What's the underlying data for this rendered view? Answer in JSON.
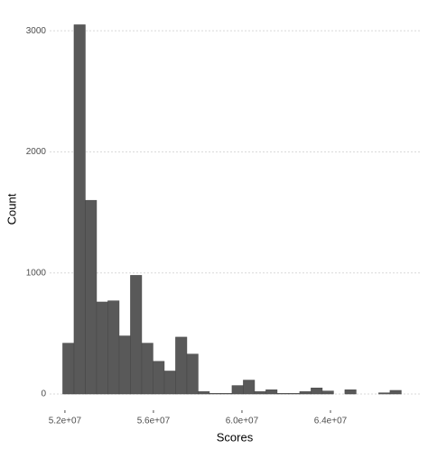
{
  "chart_data": {
    "type": "histogram",
    "xlabel": "Scores",
    "ylabel": "Count",
    "bins": [
      51900000,
      52410000,
      52920000,
      53430000,
      53940000,
      54450000,
      54960000,
      55470000,
      55980000,
      56490000,
      57000000,
      57510000,
      58020000,
      58530000,
      59040000,
      59550000,
      60060000,
      60570000,
      61080000,
      61590000,
      62100000,
      62610000,
      63120000,
      63630000,
      64140000,
      64650000,
      65160000,
      65670000,
      66180000,
      66690000,
      67200000
    ],
    "values": [
      420,
      3050,
      1600,
      760,
      770,
      480,
      980,
      420,
      270,
      190,
      470,
      330,
      20,
      5,
      5,
      70,
      115,
      20,
      35,
      5,
      5,
      20,
      50,
      25,
      0,
      35,
      0,
      0,
      10,
      30
    ],
    "color": "#595959",
    "xlim": [
      51310000,
      68040000
    ],
    "xticks": [
      {
        "value": 52000000,
        "label": "5.2e+07"
      },
      {
        "value": 56000000,
        "label": "5.6e+07"
      },
      {
        "value": 60000000,
        "label": "6.0e+07"
      },
      {
        "value": 64000000,
        "label": "6.4e+07"
      }
    ],
    "ylim": [
      -134,
      3180
    ],
    "yticks": [
      0,
      1000,
      2000,
      3000
    ],
    "grid": true
  }
}
